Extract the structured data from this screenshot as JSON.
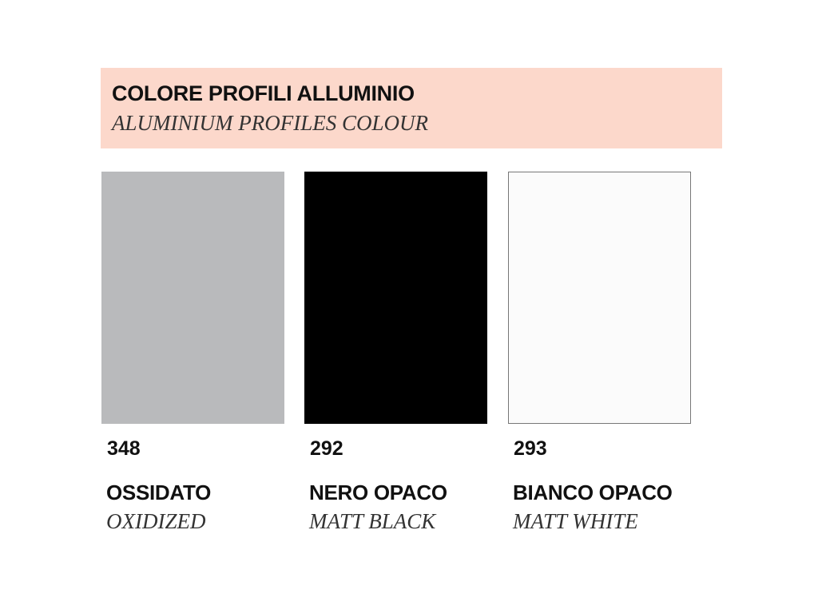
{
  "header": {
    "title": "COLORE PROFILI ALLUMINIO",
    "subtitle": "ALUMINIUM PROFILES COLOUR",
    "background_color": "#fcd8cb"
  },
  "swatches": [
    {
      "code": "348",
      "name": "OSSIDATO",
      "name_en": "OXIDIZED",
      "color": "#b9babc",
      "border": "#b9babc"
    },
    {
      "code": "292",
      "name": "NERO OPACO",
      "name_en": "MATT BLACK",
      "color": "#000000",
      "border": "#000000"
    },
    {
      "code": "293",
      "name": "BIANCO OPACO",
      "name_en": "MATT WHITE",
      "color": "#fbfbfb",
      "border": "#777777"
    }
  ]
}
